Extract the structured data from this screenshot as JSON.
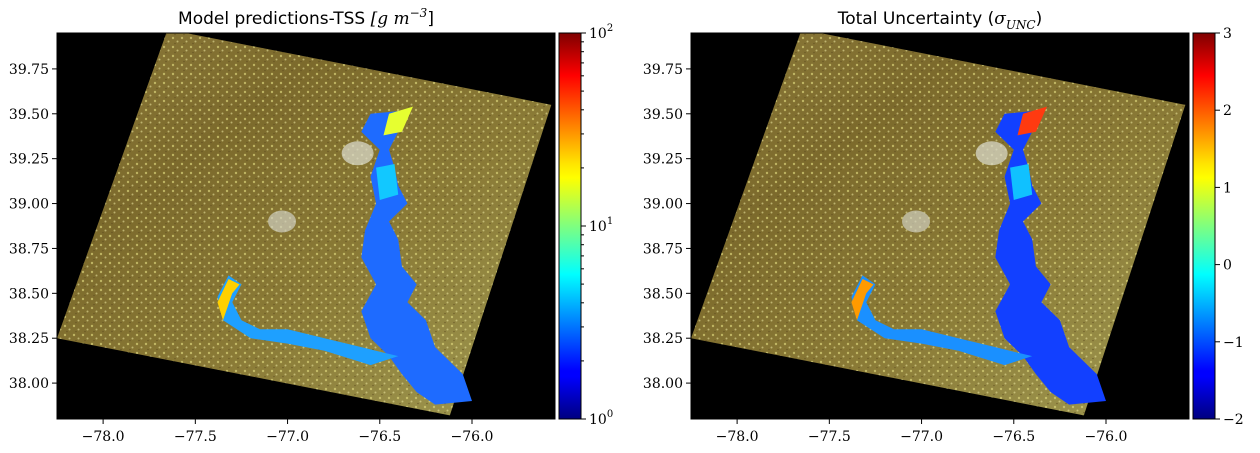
{
  "chart_data": [
    {
      "type": "heatmap",
      "title_text": "Model predictions-TSS ",
      "title_math": "[g m",
      "title_sup": "−3",
      "title_close": "]",
      "xlim": [
        -78.25,
        -75.55
      ],
      "ylim": [
        37.8,
        39.95
      ],
      "xticks": [
        -78.0,
        -77.5,
        -77.0,
        -76.5,
        -76.0
      ],
      "xtick_labels": [
        "−78.0",
        "−77.5",
        "−77.0",
        "−76.5",
        "−76.0"
      ],
      "yticks": [
        38.0,
        38.25,
        38.5,
        38.75,
        39.0,
        39.25,
        39.5,
        39.75
      ],
      "ytick_labels": [
        "38.00",
        "38.25",
        "38.50",
        "38.75",
        "39.00",
        "39.25",
        "39.50",
        "39.75"
      ],
      "colorbar": {
        "scale": "log",
        "range": [
          1,
          100
        ],
        "ticks": [
          1,
          10,
          100
        ],
        "tick_base": "10",
        "tick_exp": [
          "0",
          "1",
          "2"
        ],
        "colormap": "jet"
      }
    },
    {
      "type": "heatmap",
      "title_text": "Total Uncertainty (",
      "title_math": "σ",
      "title_sub": "UNC",
      "title_close": ")",
      "xlim": [
        -78.25,
        -75.55
      ],
      "ylim": [
        37.8,
        39.95
      ],
      "xticks": [
        -78.0,
        -77.5,
        -77.0,
        -76.5,
        -76.0
      ],
      "xtick_labels": [
        "−78.0",
        "−77.5",
        "−77.0",
        "−76.5",
        "−76.0"
      ],
      "yticks": [
        38.0,
        38.25,
        38.5,
        38.75,
        39.0,
        39.25,
        39.5,
        39.75
      ],
      "ytick_labels": [
        "38.00",
        "38.25",
        "38.50",
        "38.75",
        "39.00",
        "39.25",
        "39.50",
        "39.75"
      ],
      "colorbar": {
        "scale": "linear",
        "range": [
          -2,
          3
        ],
        "ticks": [
          -2,
          -1,
          0,
          1,
          2,
          3
        ],
        "tick_labels": [
          "−2",
          "−1",
          "0",
          "1",
          "2",
          "3"
        ],
        "colormap": "jet"
      }
    }
  ]
}
